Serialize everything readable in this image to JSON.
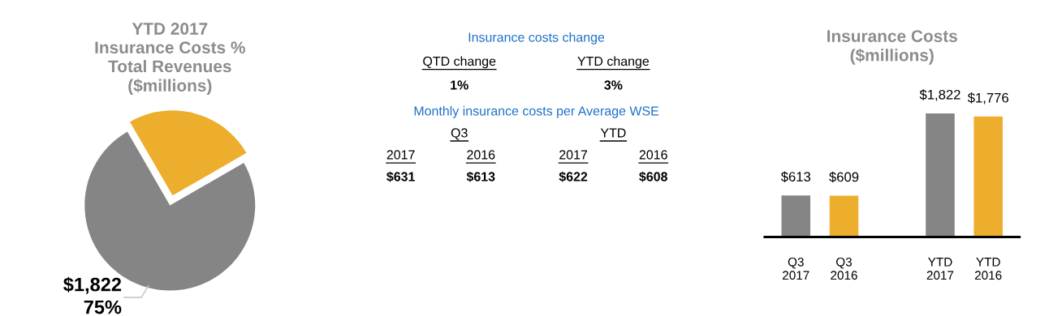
{
  "chart_data": [
    {
      "type": "pie",
      "title": "YTD 2017\nInsurance Costs %\nTotal Revenues\n($millions)",
      "categories": [
        null,
        null
      ],
      "values": [
        75,
        25
      ],
      "colors": [
        "#858585",
        "#edae2e"
      ],
      "value_labels": [
        "$1,822\n75%",
        null
      ]
    },
    {
      "type": "other",
      "title": "Insurance costs change",
      "annotations": [
        "QTD change",
        "YTD change",
        "1%",
        "3%",
        "Monthly insurance costs per Average WSE",
        "Q3",
        "YTD",
        "2017",
        "2016",
        "2017",
        "2016",
        "$631",
        "$613",
        "$622",
        "$608"
      ]
    },
    {
      "type": "bar",
      "title": "Insurance Costs\n($millions)",
      "categories": [
        "Q3\n2017",
        "Q3\n2016",
        null,
        "YTD\n2017",
        "YTD\n2016"
      ],
      "values": [
        613,
        609,
        null,
        1822,
        1776
      ],
      "colors": [
        "#858585",
        "#edae2e",
        null,
        "#858585",
        "#edae2e"
      ],
      "value_labels": [
        "$613",
        "$609",
        null,
        "$1,822",
        "$1,776"
      ]
    }
  ]
}
